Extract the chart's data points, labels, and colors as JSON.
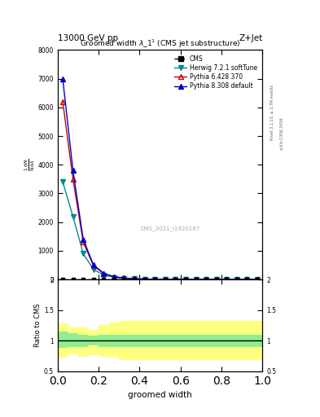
{
  "title": "Groomed width $\\lambda\\_1^1$ (CMS jet substructure)",
  "header_left": "13000 GeV pp",
  "header_right": "Z+Jet",
  "cms_watermark": "CMS_2021_I1920187",
  "rivet_label": "Rivet 3.1.10, ≥ 2.7M events",
  "arxiv_label": "arXiv:1306.3436",
  "xlabel": "groomed width",
  "ratio_ylabel": "Ratio to CMS",
  "xlim": [
    0.0,
    1.0
  ],
  "ylim_main": [
    0,
    8000
  ],
  "ylim_ratio": [
    0.5,
    2.0
  ],
  "x_data": [
    0.025,
    0.075,
    0.125,
    0.175,
    0.225,
    0.275,
    0.325,
    0.375,
    0.425,
    0.475,
    0.525,
    0.575,
    0.625,
    0.675,
    0.725,
    0.775,
    0.825,
    0.875,
    0.925,
    0.975
  ],
  "herwig_y": [
    3400,
    2200,
    900,
    350,
    150,
    70,
    35,
    18,
    10,
    7,
    5,
    3,
    2,
    2,
    1,
    1,
    1,
    1,
    0,
    0
  ],
  "pythia6_y": [
    6200,
    3500,
    1300,
    480,
    200,
    90,
    45,
    22,
    12,
    8,
    5,
    4,
    3,
    2,
    1,
    1,
    1,
    1,
    0,
    0
  ],
  "pythia8_y": [
    7000,
    3800,
    1400,
    510,
    210,
    95,
    48,
    24,
    13,
    8,
    6,
    4,
    3,
    2,
    2,
    1,
    1,
    1,
    0,
    0
  ],
  "green_band_upper": [
    1.15,
    1.12,
    1.1,
    1.08,
    1.1,
    1.1,
    1.1,
    1.1,
    1.1,
    1.1,
    1.1,
    1.1,
    1.1,
    1.1,
    1.1,
    1.1,
    1.1,
    1.1,
    1.1,
    1.1
  ],
  "green_band_lower": [
    0.88,
    0.9,
    0.9,
    0.92,
    0.9,
    0.9,
    0.9,
    0.9,
    0.9,
    0.9,
    0.9,
    0.9,
    0.9,
    0.9,
    0.9,
    0.9,
    0.9,
    0.9,
    0.9,
    0.9
  ],
  "yellow_band_upper": [
    1.28,
    1.22,
    1.22,
    1.18,
    1.25,
    1.3,
    1.32,
    1.32,
    1.32,
    1.32,
    1.32,
    1.32,
    1.32,
    1.32,
    1.32,
    1.32,
    1.32,
    1.32,
    1.32,
    1.32
  ],
  "yellow_band_lower": [
    0.72,
    0.78,
    0.73,
    0.76,
    0.73,
    0.72,
    0.68,
    0.68,
    0.68,
    0.68,
    0.68,
    0.68,
    0.68,
    0.68,
    0.68,
    0.68,
    0.68,
    0.68,
    0.68,
    0.68
  ],
  "herwig_color": "#008B8B",
  "pythia6_color": "#cc0000",
  "pythia8_color": "#0000cc",
  "green_color": "#90ee90",
  "yellow_color": "#ffff80",
  "yticks_main": [
    0,
    1000,
    2000,
    3000,
    4000,
    5000,
    6000,
    7000,
    8000
  ],
  "ytick_labels_main": [
    "0",
    "1000",
    "2000",
    "3000",
    "4000",
    "5000",
    "6000",
    "7000",
    "8000"
  ],
  "yticks_ratio": [
    0.5,
    1.0,
    1.5,
    2.0
  ],
  "ytick_labels_ratio": [
    "0.5",
    "1",
    "1.5",
    "2"
  ]
}
